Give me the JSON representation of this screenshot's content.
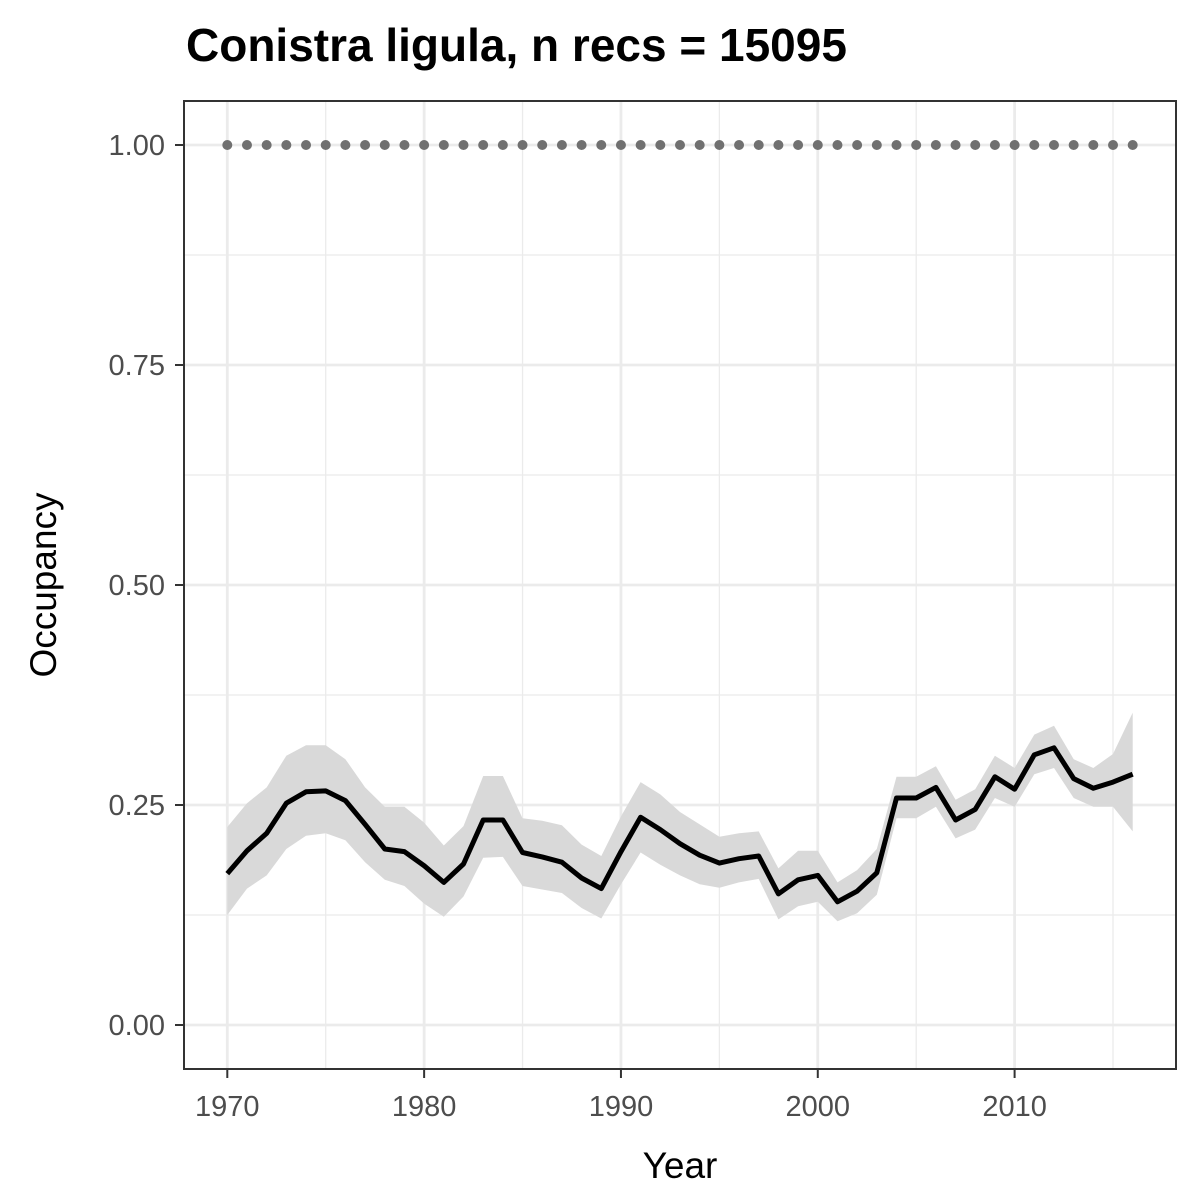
{
  "chart_data": {
    "type": "line",
    "title": "Conistra ligula, n recs = 15095",
    "xlabel": "Year",
    "ylabel": "Occupancy",
    "xlim": [
      1967.8,
      2018.2
    ],
    "ylim": [
      -0.05,
      1.05
    ],
    "grid": true,
    "x_ticks": [
      1970,
      1980,
      1990,
      2000,
      2010
    ],
    "x_tick_labels": [
      "1970",
      "1980",
      "1990",
      "2000",
      "2010"
    ],
    "x_minor_ticks": [
      1975,
      1985,
      1995,
      2005,
      2015
    ],
    "y_ticks": [
      0,
      0.25,
      0.5,
      0.75,
      1.0
    ],
    "y_tick_labels": [
      "0.00",
      "0.25",
      "0.50",
      "0.75",
      "1.00"
    ],
    "y_minor_ticks": [
      0.125,
      0.375,
      0.625,
      0.875
    ],
    "x": [
      1970,
      1971,
      1972,
      1973,
      1974,
      1975,
      1976,
      1977,
      1978,
      1979,
      1980,
      1981,
      1982,
      1983,
      1984,
      1985,
      1986,
      1987,
      1988,
      1989,
      1990,
      1991,
      1992,
      1993,
      1994,
      1995,
      1996,
      1997,
      1998,
      1999,
      2000,
      2001,
      2002,
      2003,
      2004,
      2005,
      2006,
      2007,
      2008,
      2009,
      2010,
      2011,
      2012,
      2013,
      2014,
      2015,
      2016
    ],
    "series": [
      {
        "type": "line",
        "color": "#000000",
        "values": [
          0.172,
          0.198,
          0.218,
          0.252,
          0.265,
          0.266,
          0.255,
          0.228,
          0.2,
          0.197,
          0.181,
          0.162,
          0.183,
          0.233,
          0.233,
          0.196,
          0.191,
          0.185,
          0.167,
          0.155,
          0.197,
          0.236,
          0.222,
          0.206,
          0.193,
          0.184,
          0.189,
          0.192,
          0.149,
          0.165,
          0.17,
          0.14,
          0.152,
          0.173,
          0.258,
          0.258,
          0.27,
          0.233,
          0.245,
          0.282,
          0.268,
          0.307,
          0.315,
          0.28,
          0.269,
          0.276,
          0.285
        ]
      },
      {
        "type": "band",
        "color": "#d9d9d9",
        "lower": [
          0.125,
          0.155,
          0.17,
          0.2,
          0.215,
          0.218,
          0.21,
          0.185,
          0.165,
          0.158,
          0.138,
          0.123,
          0.146,
          0.19,
          0.191,
          0.158,
          0.154,
          0.15,
          0.133,
          0.121,
          0.16,
          0.196,
          0.182,
          0.17,
          0.16,
          0.156,
          0.162,
          0.166,
          0.12,
          0.135,
          0.14,
          0.118,
          0.127,
          0.148,
          0.235,
          0.235,
          0.248,
          0.212,
          0.222,
          0.258,
          0.248,
          0.285,
          0.292,
          0.258,
          0.248,
          0.248,
          0.22
        ],
        "upper": [
          0.225,
          0.252,
          0.27,
          0.306,
          0.318,
          0.318,
          0.302,
          0.27,
          0.248,
          0.248,
          0.23,
          0.204,
          0.226,
          0.283,
          0.283,
          0.235,
          0.232,
          0.227,
          0.205,
          0.192,
          0.237,
          0.276,
          0.262,
          0.242,
          0.228,
          0.214,
          0.218,
          0.22,
          0.178,
          0.198,
          0.198,
          0.162,
          0.176,
          0.2,
          0.282,
          0.282,
          0.294,
          0.256,
          0.268,
          0.306,
          0.292,
          0.33,
          0.34,
          0.302,
          0.292,
          0.308,
          0.355
        ]
      },
      {
        "type": "points",
        "color": "#707070",
        "values": [
          1,
          1,
          1,
          1,
          1,
          1,
          1,
          1,
          1,
          1,
          1,
          1,
          1,
          1,
          1,
          1,
          1,
          1,
          1,
          1,
          1,
          1,
          1,
          1,
          1,
          1,
          1,
          1,
          1,
          1,
          1,
          1,
          1,
          1,
          1,
          1,
          1,
          1,
          1,
          1,
          1,
          1,
          1,
          1,
          1,
          1,
          1
        ]
      }
    ]
  }
}
